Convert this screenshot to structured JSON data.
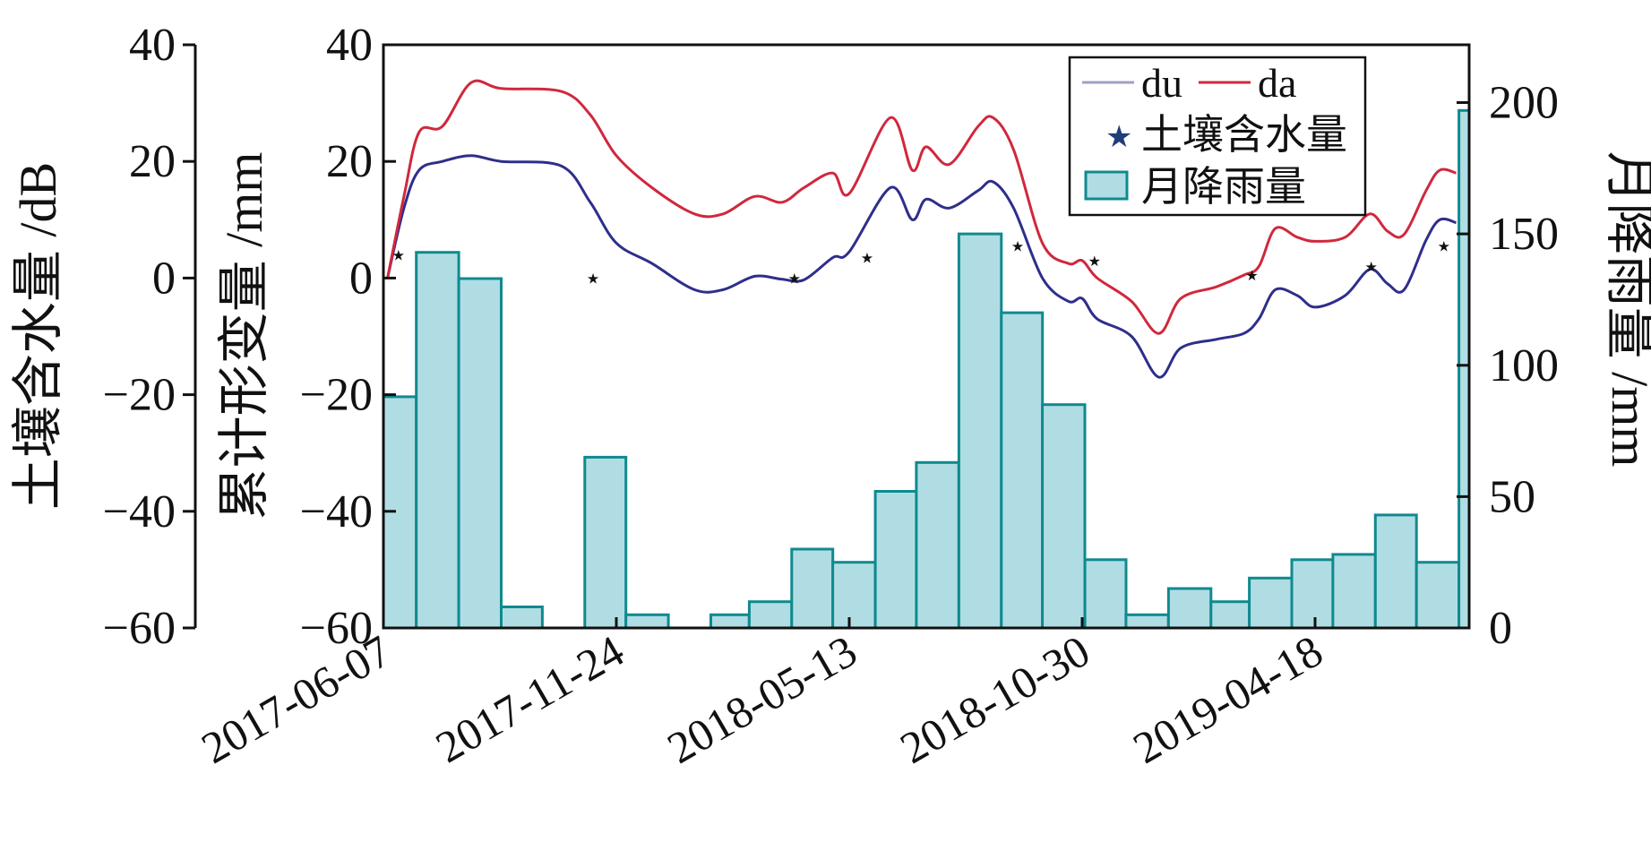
{
  "chart_data": {
    "type": "bar+line+scatter",
    "title": "",
    "x_dates": [
      "2017-06-07",
      "2017-11-24",
      "2018-05-13",
      "2018-10-30",
      "2019-04-18"
    ],
    "axes": {
      "soil_moisture": {
        "label": "土壤含水量 /dB",
        "ylim": [
          -60,
          40
        ],
        "ticks": [
          "40",
          "20",
          "0",
          "−20",
          "−40",
          "−60"
        ]
      },
      "deformation": {
        "label": "累计形变量 /mm",
        "ylim": [
          -60,
          40
        ],
        "ticks": [
          "40",
          "20",
          "0",
          "−20",
          "−40",
          "−60"
        ]
      },
      "rainfall": {
        "label": "月降雨量 /mm",
        "ylim": [
          0,
          222
        ],
        "ticks": [
          "0",
          "50",
          "100",
          "150",
          "200"
        ]
      }
    },
    "legend": {
      "position": "top-right",
      "du_label": "du",
      "da_label": "da",
      "soil_label": "土壤含水量",
      "rain_label": "月降雨量"
    },
    "series": [
      {
        "name": "du",
        "color": "#2e2e8c",
        "points": [
          [
            "2017-06-10",
            0
          ],
          [
            "2017-06-22",
            12
          ],
          [
            "2017-07-03",
            18.5
          ],
          [
            "2017-07-20",
            20
          ],
          [
            "2017-08-10",
            21
          ],
          [
            "2017-09-01",
            20
          ],
          [
            "2017-10-15",
            19.2
          ],
          [
            "2017-11-05",
            13
          ],
          [
            "2017-11-24",
            6
          ],
          [
            "2017-12-20",
            2.5
          ],
          [
            "2018-01-20",
            -2
          ],
          [
            "2018-02-10",
            -2
          ],
          [
            "2018-03-05",
            0.3
          ],
          [
            "2018-03-25",
            -0.2
          ],
          [
            "2018-04-10",
            -0.3
          ],
          [
            "2018-05-01",
            3.5
          ],
          [
            "2018-05-13",
            4.5
          ],
          [
            "2018-06-12",
            15.5
          ],
          [
            "2018-06-28",
            10
          ],
          [
            "2018-07-08",
            13.5
          ],
          [
            "2018-07-25",
            12
          ],
          [
            "2018-08-15",
            15
          ],
          [
            "2018-08-26",
            16.5
          ],
          [
            "2018-09-10",
            12
          ],
          [
            "2018-10-01",
            0
          ],
          [
            "2018-10-20",
            -4
          ],
          [
            "2018-10-30",
            -3.5
          ],
          [
            "2018-11-10",
            -7
          ],
          [
            "2018-12-05",
            -10
          ],
          [
            "2018-12-25",
            -17
          ],
          [
            "2019-01-10",
            -12
          ],
          [
            "2019-02-05",
            -10.5
          ],
          [
            "2019-02-25",
            -9.5
          ],
          [
            "2019-03-08",
            -7
          ],
          [
            "2019-03-20",
            -2
          ],
          [
            "2019-04-05",
            -3
          ],
          [
            "2019-04-18",
            -5
          ],
          [
            "2019-05-10",
            -3
          ],
          [
            "2019-05-28",
            1.5
          ],
          [
            "2019-06-10",
            -1
          ],
          [
            "2019-06-22",
            -2
          ],
          [
            "2019-07-08",
            6.5
          ],
          [
            "2019-07-18",
            10
          ],
          [
            "2019-07-30",
            9.5
          ]
        ]
      },
      {
        "name": "da",
        "color": "#d0283c",
        "points": [
          [
            "2017-06-10",
            0
          ],
          [
            "2017-06-22",
            14
          ],
          [
            "2017-07-03",
            25
          ],
          [
            "2017-07-20",
            26
          ],
          [
            "2017-08-10",
            33.5
          ],
          [
            "2017-09-01",
            32.5
          ],
          [
            "2017-10-15",
            32
          ],
          [
            "2017-11-05",
            28
          ],
          [
            "2017-11-24",
            21
          ],
          [
            "2017-12-20",
            15.5
          ],
          [
            "2018-01-20",
            11
          ],
          [
            "2018-02-10",
            11
          ],
          [
            "2018-03-05",
            14
          ],
          [
            "2018-03-25",
            13
          ],
          [
            "2018-04-10",
            15.5
          ],
          [
            "2018-05-01",
            18
          ],
          [
            "2018-05-13",
            14.5
          ],
          [
            "2018-06-12",
            27.5
          ],
          [
            "2018-06-28",
            18.5
          ],
          [
            "2018-07-08",
            22.5
          ],
          [
            "2018-07-25",
            19.5
          ],
          [
            "2018-08-15",
            26
          ],
          [
            "2018-08-26",
            27.5
          ],
          [
            "2018-09-10",
            22
          ],
          [
            "2018-10-01",
            6
          ],
          [
            "2018-10-20",
            2.5
          ],
          [
            "2018-10-30",
            3
          ],
          [
            "2018-11-10",
            0
          ],
          [
            "2018-12-05",
            -4
          ],
          [
            "2018-12-25",
            -9.5
          ],
          [
            "2019-01-10",
            -3.5
          ],
          [
            "2019-02-05",
            -1.5
          ],
          [
            "2019-02-25",
            0.5
          ],
          [
            "2019-03-08",
            2
          ],
          [
            "2019-03-20",
            8.5
          ],
          [
            "2019-04-05",
            7
          ],
          [
            "2019-04-18",
            6.3
          ],
          [
            "2019-05-10",
            7
          ],
          [
            "2019-05-28",
            11
          ],
          [
            "2019-06-10",
            8
          ],
          [
            "2019-06-22",
            7.5
          ],
          [
            "2019-07-08",
            15
          ],
          [
            "2019-07-18",
            18.5
          ],
          [
            "2019-07-30",
            18
          ]
        ]
      },
      {
        "name": "土壤含水量",
        "color": "#1f3e7a",
        "points": [
          [
            "2017-06-18",
            4
          ],
          [
            "2017-11-07",
            0
          ],
          [
            "2018-04-03",
            0
          ],
          [
            "2018-05-26",
            3.5
          ],
          [
            "2018-09-13",
            5.5
          ],
          [
            "2018-11-08",
            3
          ],
          [
            "2019-03-03",
            0.5
          ],
          [
            "2019-05-29",
            2
          ],
          [
            "2019-07-21",
            5.5
          ]
        ]
      }
    ],
    "rainfall": {
      "name": "月降雨量",
      "color": "#b0dde3",
      "edge": "#0f8a8f",
      "bins": [
        [
          "2017-06-01",
          88
        ],
        [
          "2017-07-01",
          143
        ],
        [
          "2017-08-01",
          133
        ],
        [
          "2017-09-01",
          8
        ],
        [
          "2017-10-01",
          0
        ],
        [
          "2017-11-01",
          65
        ],
        [
          "2017-12-01",
          5
        ],
        [
          "2018-01-01",
          0
        ],
        [
          "2018-02-01",
          5
        ],
        [
          "2018-03-01",
          10
        ],
        [
          "2018-04-01",
          30
        ],
        [
          "2018-05-01",
          25
        ],
        [
          "2018-06-01",
          52
        ],
        [
          "2018-07-01",
          63
        ],
        [
          "2018-08-01",
          150
        ],
        [
          "2018-09-01",
          120
        ],
        [
          "2018-10-01",
          85
        ],
        [
          "2018-11-01",
          26
        ],
        [
          "2018-12-01",
          5
        ],
        [
          "2019-01-01",
          15
        ],
        [
          "2019-02-01",
          10
        ],
        [
          "2019-03-01",
          19
        ],
        [
          "2019-04-01",
          26
        ],
        [
          "2019-05-01",
          28
        ],
        [
          "2019-06-01",
          43
        ],
        [
          "2019-07-01",
          25
        ],
        [
          "2019-08-01",
          197
        ]
      ]
    }
  }
}
